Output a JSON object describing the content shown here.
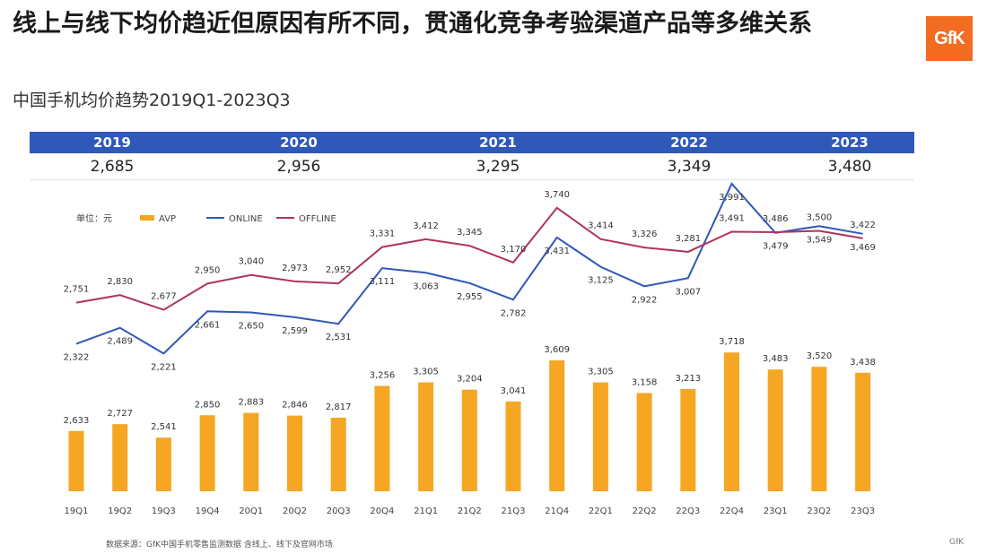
{
  "header": {
    "title": "线上与线下均价趋近但原因有所不同，贯通化竞争考验渠道产品等多维关系",
    "subtitle": "中国手机均价趋势2019Q1-2023Q3",
    "logo": "GfK"
  },
  "annual_summary": [
    {
      "year": "2019",
      "value": "2,685"
    },
    {
      "year": "2020",
      "value": "2,956"
    },
    {
      "year": "2021",
      "value": "3,295"
    },
    {
      "year": "2022",
      "value": "3,349"
    },
    {
      "year": "2023",
      "value": "3,480"
    }
  ],
  "colors": {
    "bar": "#f5a623",
    "online": "#2f58b8",
    "offline": "#b0345a",
    "year_bar": "#2f58b8"
  },
  "chart_data": {
    "type": "bar",
    "unit_label": "单位：元",
    "categories": [
      "19Q1",
      "19Q2",
      "19Q3",
      "19Q4",
      "20Q1",
      "20Q2",
      "20Q3",
      "20Q4",
      "21Q1",
      "21Q2",
      "21Q3",
      "21Q4",
      "22Q1",
      "22Q2",
      "22Q3",
      "22Q4",
      "23Q1",
      "23Q2",
      "23Q3"
    ],
    "series": [
      {
        "name": "AVP",
        "type": "bar",
        "values": [
          2633,
          2727,
          2541,
          2850,
          2883,
          2846,
          2817,
          3256,
          3305,
          3204,
          3041,
          3609,
          3305,
          3158,
          3213,
          3718,
          3483,
          3520,
          3438
        ],
        "labels": [
          "2,633",
          "2,727",
          "2,541",
          "2,850",
          "2,883",
          "2,846",
          "2,817",
          "3,256",
          "3,305",
          "3,204",
          "3,041",
          "3,609",
          "3,305",
          "3,158",
          "3,213",
          "3,718",
          "3,483",
          "3,520",
          "3,438"
        ]
      },
      {
        "name": "ONLINE",
        "type": "line",
        "values": [
          2322,
          2489,
          2221,
          2661,
          2650,
          2599,
          2531,
          3111,
          3063,
          2955,
          2782,
          3431,
          3125,
          2922,
          3007,
          3991,
          3479,
          3549,
          3469
        ],
        "labels": [
          "2,322",
          "2,489",
          "2,221",
          "2,661",
          "2,650",
          "2,599",
          "2,531",
          "3,111",
          "3,063",
          "2,955",
          "2,782",
          "3,431",
          "3,125",
          "2,922",
          "3,007",
          "3,991",
          "3,479",
          "3,549",
          "3,469"
        ]
      },
      {
        "name": "OFFLINE",
        "type": "line",
        "values": [
          2751,
          2830,
          2677,
          2950,
          3040,
          2973,
          2952,
          3331,
          3412,
          3345,
          3170,
          3740,
          3414,
          3326,
          3281,
          3491,
          3486,
          3500,
          3422
        ],
        "labels": [
          "2,751",
          "2,830",
          "2,677",
          "2,950",
          "3,040",
          "2,973",
          "2,952",
          "3,331",
          "3,412",
          "3,345",
          "3,170",
          "3,740",
          "3,414",
          "3,326",
          "3,281",
          "3,491",
          "3,486",
          "3,500",
          "3,422"
        ]
      }
    ]
  },
  "footer": {
    "source": "数据来源：GfK中国手机零售监测数据 含线上、线下及官网市场",
    "brand": "GfK"
  }
}
